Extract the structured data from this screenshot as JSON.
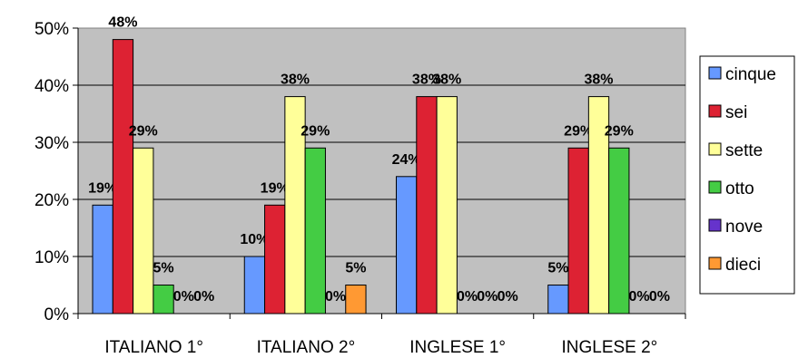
{
  "chart_data": {
    "type": "bar",
    "categories": [
      "ITALIANO 1°",
      "ITALIANO 2°",
      "INGLESE 1°",
      "INGLESE 2°"
    ],
    "series": [
      {
        "name": "cinque",
        "color": "#6699ff",
        "values": [
          19,
          10,
          24,
          5
        ]
      },
      {
        "name": "sei",
        "color": "#dd2233",
        "values": [
          48,
          19,
          38,
          29
        ]
      },
      {
        "name": "sette",
        "color": "#ffff99",
        "values": [
          29,
          38,
          38,
          38
        ]
      },
      {
        "name": "otto",
        "color": "#44cc44",
        "values": [
          5,
          29,
          0,
          29
        ]
      },
      {
        "name": "nove",
        "color": "#6633cc",
        "values": [
          0,
          0,
          0,
          0
        ]
      },
      {
        "name": "dieci",
        "color": "#ff9933",
        "values": [
          0,
          5,
          0,
          0
        ]
      }
    ],
    "data_labels": [
      [
        "19%",
        "48%",
        "29%",
        "5%",
        "0%",
        "0%"
      ],
      [
        "10%",
        "19%",
        "38%",
        "29%",
        "0%",
        "5%"
      ],
      [
        "24%",
        "38%",
        "38%",
        "0%",
        "0%",
        "0%"
      ],
      [
        "5%",
        "29%",
        "38%",
        "29%",
        "0%",
        "0%"
      ]
    ],
    "yticks": [
      "0%",
      "10%",
      "20%",
      "30%",
      "40%",
      "50%"
    ],
    "ylim": [
      0,
      50
    ],
    "grid": true,
    "plot_background": "#c0c0c0",
    "legend_position": "right"
  }
}
